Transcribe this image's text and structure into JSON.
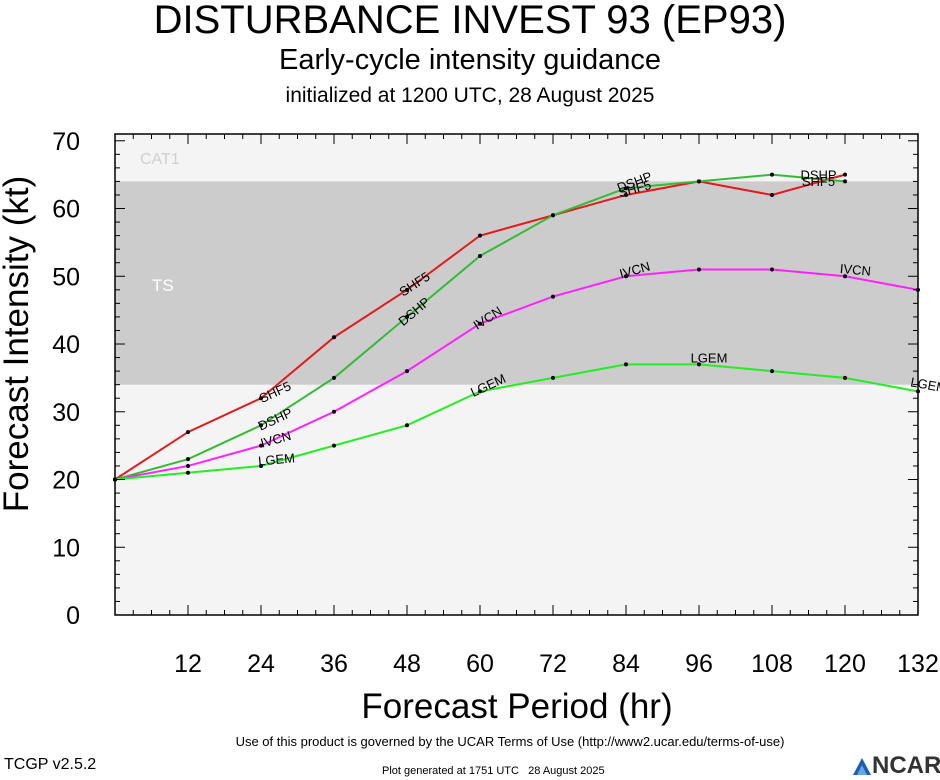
{
  "header": {
    "title": "DISTURBANCE INVEST 93 (EP93)",
    "subtitle": "Early-cycle intensity guidance",
    "init": "initialized at 1200 UTC, 28 August 2025"
  },
  "footer": {
    "terms": "Use of this product is governed by the UCAR Terms of Use (http://www2.ucar.edu/terms-of-use)",
    "version": "TCGP v2.5.2",
    "generated": "Plot generated at 1751 UTC   28 August 2025",
    "logo_text": "NCAR"
  },
  "colors": {
    "SHF5": "#e41a1c",
    "DSHP": "#33bb33",
    "IVCN": "#ff22ff",
    "LGEM": "#22ee22",
    "band_light": "#f4f4f4",
    "band_dark": "#cccccc"
  },
  "chart_data": {
    "type": "line",
    "title": "DISTURBANCE INVEST 93 (EP93)",
    "xlabel": "Forecast Period (hr)",
    "ylabel": "Forecast Intensity (kt)",
    "xlim": [
      0,
      132
    ],
    "ylim": [
      0,
      71
    ],
    "xticks": [
      12,
      24,
      36,
      48,
      60,
      72,
      84,
      96,
      108,
      120,
      132
    ],
    "yticks": [
      0,
      10,
      20,
      30,
      40,
      50,
      60,
      70
    ],
    "bands": [
      {
        "label": "TS",
        "from": 34,
        "to": 64
      },
      {
        "label": "CAT1",
        "from": 64,
        "to": 71
      }
    ],
    "series": [
      {
        "name": "SHF5",
        "x": [
          0,
          12,
          24,
          36,
          48,
          60,
          72,
          84,
          96,
          108,
          120
        ],
        "y": [
          20,
          27,
          32,
          41,
          48,
          56,
          59,
          62,
          64,
          62,
          65
        ]
      },
      {
        "name": "DSHP",
        "x": [
          0,
          12,
          24,
          36,
          48,
          60,
          72,
          84,
          96,
          108,
          120
        ],
        "y": [
          20,
          23,
          28,
          35,
          44,
          53,
          59,
          63,
          64,
          65,
          64
        ]
      },
      {
        "name": "IVCN",
        "x": [
          0,
          12,
          24,
          36,
          48,
          60,
          72,
          84,
          96,
          108,
          120,
          132
        ],
        "y": [
          20,
          22,
          25,
          30,
          36,
          43,
          47,
          50,
          51,
          51,
          50,
          48
        ]
      },
      {
        "name": "LGEM",
        "x": [
          0,
          12,
          24,
          36,
          48,
          60,
          72,
          84,
          96,
          108,
          120,
          132
        ],
        "y": [
          20,
          21,
          22,
          25,
          28,
          33,
          35,
          37,
          37,
          36,
          35,
          33
        ]
      }
    ],
    "grid": false,
    "legend": "inline labels"
  }
}
